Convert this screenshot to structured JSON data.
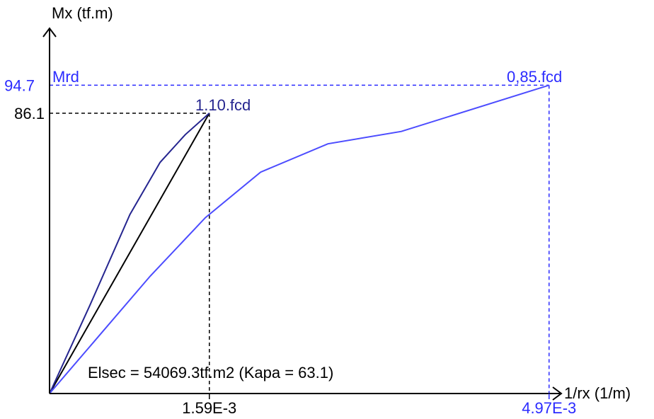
{
  "chart_data": {
    "type": "line",
    "title": "",
    "xlabel": "1/rx (1/m)",
    "ylabel": "Mx (tf.m)",
    "xlim": [
      0,
      0.0055
    ],
    "ylim": [
      0,
      104
    ],
    "grid": false,
    "colors": {
      "axis": "#000000",
      "secant": "#000000",
      "curve_110fcd": "#25258f",
      "curve_085fcd": "#4c4cff",
      "guide_110fcd": "#000000",
      "guide_085fcd": "#2b2bff",
      "label_blue": "#2b2bff",
      "label_navy": "#25258f"
    },
    "series": [
      {
        "key": "curve_110fcd",
        "x": [
          0,
          0.0004,
          0.0008,
          0.0011,
          0.00135,
          0.00159
        ],
        "y": [
          0,
          27,
          55,
          71,
          79.5,
          86.1
        ]
      },
      {
        "key": "secant",
        "x": [
          0,
          0.00159
        ],
        "y": [
          0,
          86.1
        ]
      },
      {
        "key": "curve_085fcd",
        "x": [
          0,
          0.0005,
          0.001,
          0.00155,
          0.0021,
          0.00277,
          0.0035,
          0.00497
        ],
        "y": [
          0,
          18,
          36,
          54,
          68,
          76.7,
          80.5,
          94.7
        ]
      }
    ],
    "ticks": {
      "x": [
        {
          "value": 0.00159,
          "label": "1.59E-3",
          "style": "black"
        },
        {
          "value": 0.00497,
          "label": "4.97E-3",
          "style": "blue"
        }
      ],
      "y": [
        {
          "value": 86.1,
          "label": "86.1",
          "style": "black"
        },
        {
          "value": 94.7,
          "label": "94.7",
          "style": "blue"
        }
      ]
    },
    "annotations": {
      "mrd": "Mrd",
      "peak_110fcd": "1.10.fcd",
      "peak_085fcd": "0,85.fcd",
      "stiffness": "Elsec = 54069.3tf.m2 (Kapa = 63.1)"
    }
  }
}
